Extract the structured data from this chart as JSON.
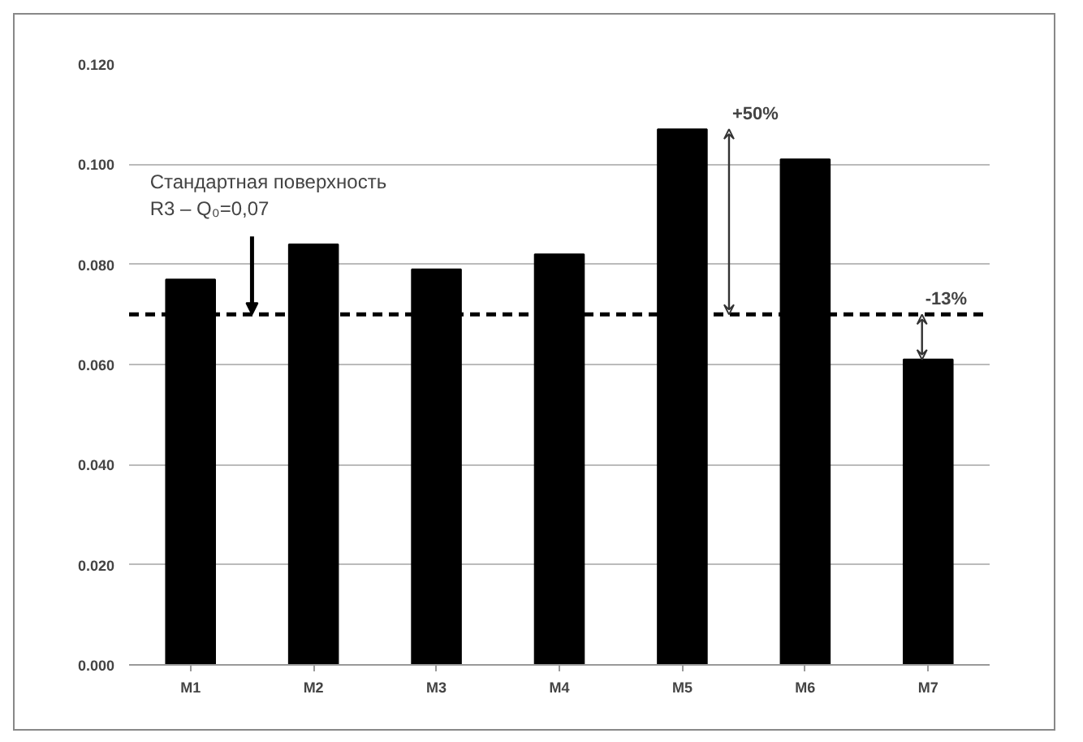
{
  "chart_data": {
    "type": "bar",
    "categories": [
      "M1",
      "M2",
      "M3",
      "M4",
      "M5",
      "M6",
      "M7"
    ],
    "values": [
      0.077,
      0.084,
      0.079,
      0.082,
      0.107,
      0.101,
      0.061
    ],
    "color": "#000000",
    "ylim": [
      0,
      0.12
    ],
    "yticks": [
      {
        "value": 0,
        "label": "0.000"
      },
      {
        "value": 0.02,
        "label": "0.020"
      },
      {
        "value": 0.04,
        "label": "0.040"
      },
      {
        "value": 0.06,
        "label": "0.060"
      },
      {
        "value": 0.08,
        "label": "0.080"
      },
      {
        "value": 0.1,
        "label": "0.100"
      },
      {
        "value": 0.12,
        "label": "0.120"
      }
    ],
    "grid": "y",
    "ref_lines": [
      {
        "axis": "y",
        "value": 0.07,
        "label": "Стандартная поверхность\nR3 – Q₀=0,07",
        "color": "#000000",
        "line_style": "dashed"
      }
    ],
    "annotations": [
      {
        "text": "+50%",
        "x": "M5",
        "y": 0.107
      },
      {
        "text": "-13%",
        "x": "M7",
        "y": 0.061
      }
    ]
  }
}
